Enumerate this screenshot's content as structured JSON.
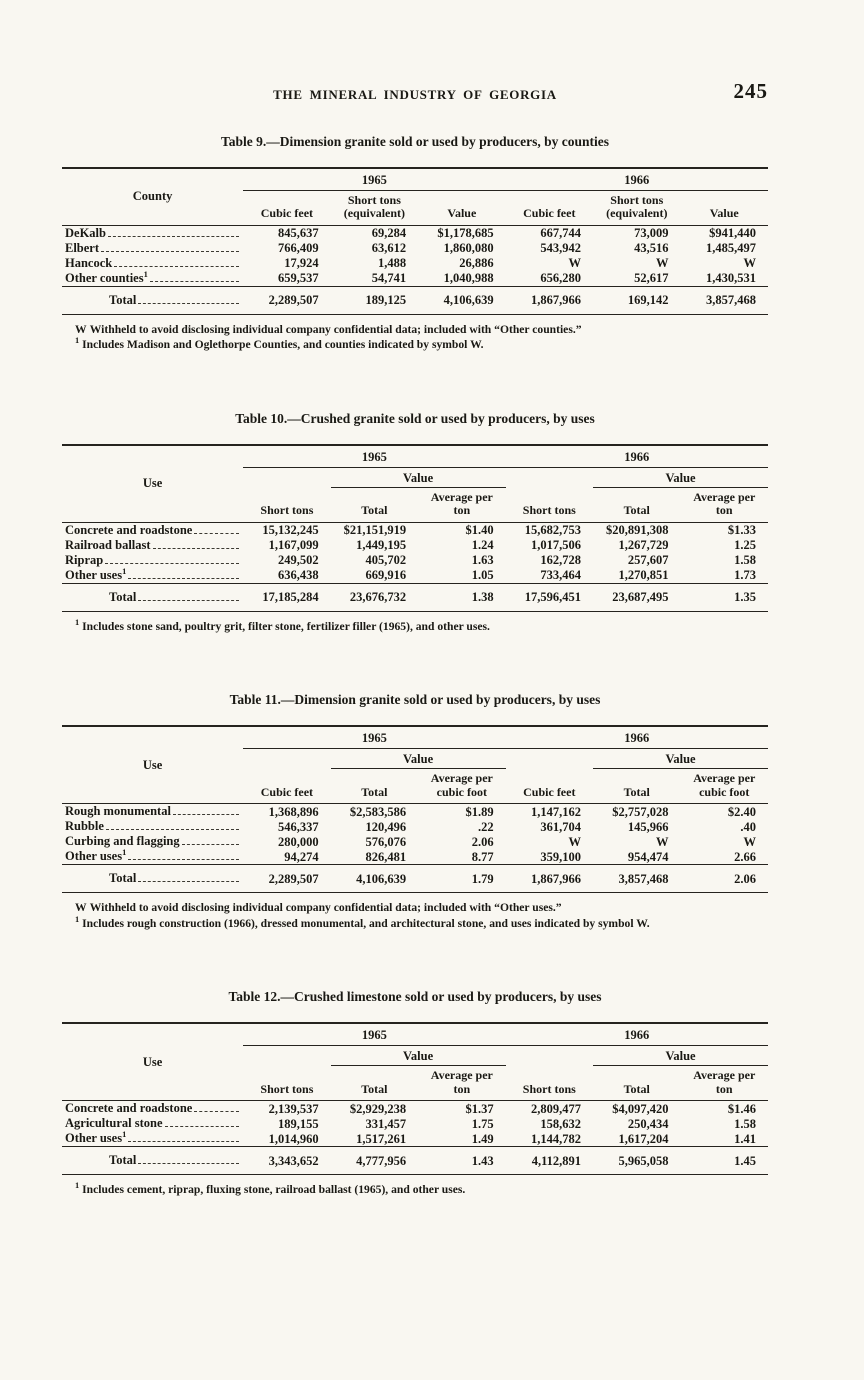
{
  "page": {
    "running_header": "THE MINERAL INDUSTRY OF GEORGIA",
    "page_number": "245"
  },
  "tables": [
    {
      "title": "Table 9.—Dimension granite sold or used by producers, by counties",
      "stub_header": "County",
      "years": [
        "1965",
        "1966"
      ],
      "value_group": null,
      "columns": [
        "Cubic feet",
        "Short tons (equivalent)",
        "Value"
      ],
      "rows": [
        {
          "label": "DeKalb",
          "values": [
            "845,637",
            "69,284",
            "$1,178,685",
            "667,744",
            "73,009",
            "$941,440"
          ]
        },
        {
          "label": "Elbert",
          "values": [
            "766,409",
            "63,612",
            "1,860,080",
            "543,942",
            "43,516",
            "1,485,497"
          ]
        },
        {
          "label": "Hancock",
          "values": [
            "17,924",
            "1,488",
            "26,886",
            "W",
            "W",
            "W"
          ]
        },
        {
          "label": "Other counties",
          "sup": "1",
          "values": [
            "659,537",
            "54,741",
            "1,040,988",
            "656,280",
            "52,617",
            "1,430,531"
          ]
        }
      ],
      "total": {
        "label": "Total",
        "values": [
          "2,289,507",
          "189,125",
          "4,106,639",
          "1,867,966",
          "169,142",
          "3,857,468"
        ]
      },
      "footnotes": [
        {
          "marker": "W",
          "sup": false,
          "text": "Withheld to avoid disclosing individual company confidential data; included with “Other counties.”"
        },
        {
          "marker": "1",
          "sup": true,
          "text": "Includes Madison and Oglethorpe Counties, and counties indicated by symbol W."
        }
      ]
    },
    {
      "title": "Table 10.—Crushed granite sold or used by producers, by uses",
      "stub_header": "Use",
      "years": [
        "1965",
        "1966"
      ],
      "value_group": "Value",
      "columns": [
        "Short tons",
        "Total",
        "Average per ton"
      ],
      "rows": [
        {
          "label": "Concrete and roadstone",
          "values": [
            "15,132,245",
            "$21,151,919",
            "$1.40",
            "15,682,753",
            "$20,891,308",
            "$1.33"
          ]
        },
        {
          "label": "Railroad ballast",
          "values": [
            "1,167,099",
            "1,449,195",
            "1.24",
            "1,017,506",
            "1,267,729",
            "1.25"
          ]
        },
        {
          "label": "Riprap",
          "values": [
            "249,502",
            "405,702",
            "1.63",
            "162,728",
            "257,607",
            "1.58"
          ]
        },
        {
          "label": "Other uses",
          "sup": "1",
          "values": [
            "636,438",
            "669,916",
            "1.05",
            "733,464",
            "1,270,851",
            "1.73"
          ]
        }
      ],
      "total": {
        "label": "Total",
        "values": [
          "17,185,284",
          "23,676,732",
          "1.38",
          "17,596,451",
          "23,687,495",
          "1.35"
        ]
      },
      "footnotes": [
        {
          "marker": "1",
          "sup": true,
          "text": "Includes stone sand, poultry grit, filter stone, fertilizer filler (1965), and other uses."
        }
      ]
    },
    {
      "title": "Table 11.—Dimension granite sold or used by producers, by uses",
      "stub_header": "Use",
      "years": [
        "1965",
        "1966"
      ],
      "value_group": "Value",
      "columns": [
        "Cubic feet",
        "Total",
        "Average per cubic foot"
      ],
      "rows": [
        {
          "label": "Rough monumental",
          "values": [
            "1,368,896",
            "$2,583,586",
            "$1.89",
            "1,147,162",
            "$2,757,028",
            "$2.40"
          ]
        },
        {
          "label": "Rubble",
          "values": [
            "546,337",
            "120,496",
            ".22",
            "361,704",
            "145,966",
            ".40"
          ]
        },
        {
          "label": "Curbing and flagging",
          "values": [
            "280,000",
            "576,076",
            "2.06",
            "W",
            "W",
            "W"
          ]
        },
        {
          "label": "Other uses",
          "sup": "1",
          "values": [
            "94,274",
            "826,481",
            "8.77",
            "359,100",
            "954,474",
            "2.66"
          ]
        }
      ],
      "total": {
        "label": "Total",
        "values": [
          "2,289,507",
          "4,106,639",
          "1.79",
          "1,867,966",
          "3,857,468",
          "2.06"
        ]
      },
      "footnotes": [
        {
          "marker": "W",
          "sup": false,
          "text": "Withheld to avoid disclosing individual company confidential data; included with “Other uses.”"
        },
        {
          "marker": "1",
          "sup": true,
          "text": "Includes rough construction (1966), dressed monumental, and architectural stone, and uses indicated by symbol W."
        }
      ]
    },
    {
      "title": "Table 12.—Crushed limestone sold or used by producers, by uses",
      "stub_header": "Use",
      "years": [
        "1965",
        "1966"
      ],
      "value_group": "Value",
      "columns": [
        "Short tons",
        "Total",
        "Average per ton"
      ],
      "rows": [
        {
          "label": "Concrete and roadstone",
          "values": [
            "2,139,537",
            "$2,929,238",
            "$1.37",
            "2,809,477",
            "$4,097,420",
            "$1.46"
          ]
        },
        {
          "label": "Agricultural stone",
          "values": [
            "189,155",
            "331,457",
            "1.75",
            "158,632",
            "250,434",
            "1.58"
          ]
        },
        {
          "label": "Other uses",
          "sup": "1",
          "values": [
            "1,014,960",
            "1,517,261",
            "1.49",
            "1,144,782",
            "1,617,204",
            "1.41"
          ]
        }
      ],
      "total": {
        "label": "Total",
        "values": [
          "3,343,652",
          "4,777,956",
          "1.43",
          "4,112,891",
          "5,965,058",
          "1.45"
        ]
      },
      "footnotes": [
        {
          "marker": "1",
          "sup": true,
          "text": "Includes cement, riprap, fluxing stone, railroad ballast (1965), and other uses."
        }
      ]
    }
  ]
}
